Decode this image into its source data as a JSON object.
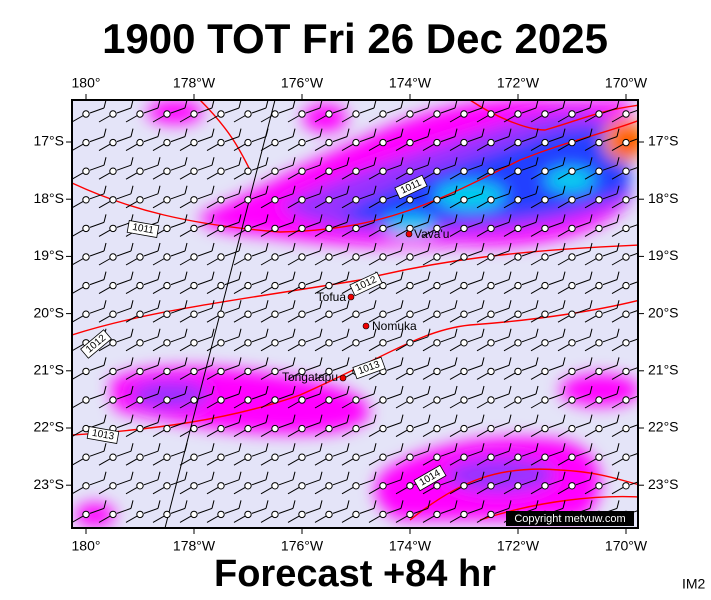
{
  "title": "1900 TOT Fri 26 Dec 2025",
  "footer": "Forecast +84 hr",
  "image_id": "IM2",
  "copyright": "Copyright metvuw.com",
  "longitude_labels": [
    "180°",
    "178°W",
    "176°W",
    "174°W",
    "172°W",
    "170°W"
  ],
  "latitude_labels": [
    "17°S",
    "18°S",
    "19°S",
    "20°S",
    "21°S",
    "22°S",
    "23°S"
  ],
  "places": [
    "Vava'u",
    "Tofua",
    "Nomuka",
    "Tongatapu"
  ],
  "isobar_labels": [
    "1011",
    "1011",
    "1012",
    "1012",
    "1013",
    "1013",
    "1014"
  ]
}
